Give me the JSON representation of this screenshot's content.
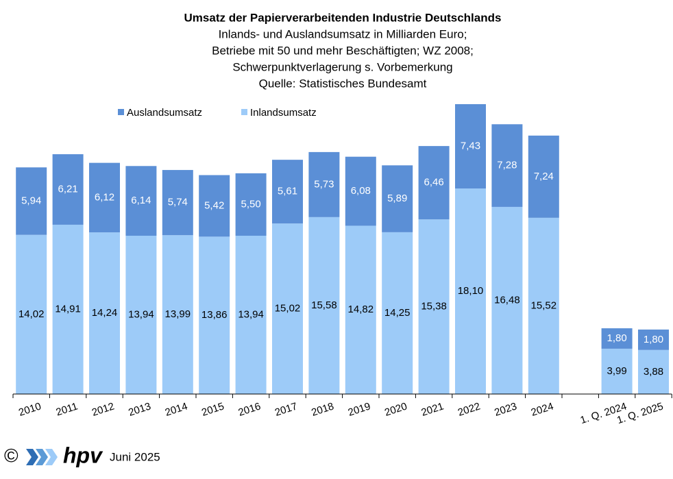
{
  "chart_data": {
    "type": "stacked_bar",
    "title": "Umsatz der Papierverarbeitenden Industrie Deutschlands",
    "subtitle": [
      "Inlands- und Auslandsumsatz  in Milliarden Euro;",
      "Betriebe mit 50 und mehr  Beschäftigten; WZ 2008;",
      "Schwerpunktverlagerung  s. Vorbemerkung",
      "Quelle:  Statistisches Bundesamt"
    ],
    "categories": [
      "2010",
      "2011",
      "2012",
      "2013",
      "2014",
      "2015",
      "2016",
      "2017",
      "2018",
      "2019",
      "2020",
      "2021",
      "2022",
      "2023",
      "2024",
      null,
      "1. Q. 2024",
      "1. Q. 2025"
    ],
    "series": [
      {
        "name": "Auslandsumsatz",
        "color": "#5b8fd6",
        "values": [
          5.94,
          6.21,
          6.12,
          6.14,
          5.74,
          5.42,
          5.5,
          5.61,
          5.73,
          6.08,
          5.89,
          6.46,
          7.43,
          7.28,
          7.24,
          null,
          1.8,
          1.8
        ],
        "value_labels": [
          "5,94",
          "6,21",
          "6,12",
          "6,14",
          "5,74",
          "5,42",
          "5,50",
          "5,61",
          "5,73",
          "6,08",
          "5,89",
          "6,46",
          "7,43",
          "7,28",
          "7,24",
          null,
          "1,80",
          "1,80"
        ]
      },
      {
        "name": "Inlandsumsatz",
        "color": "#9dcbf8",
        "values": [
          14.02,
          14.91,
          14.24,
          13.94,
          13.99,
          13.86,
          13.94,
          15.02,
          15.58,
          14.82,
          14.25,
          15.38,
          18.1,
          16.48,
          15.52,
          null,
          3.99,
          3.88
        ],
        "value_labels": [
          "14,02",
          "14,91",
          "14,24",
          "13,94",
          "13,99",
          "13,86",
          "13,94",
          "15,02",
          "15,58",
          "14,82",
          "14,25",
          "15,38",
          "18,10",
          "16,48",
          "15,52",
          null,
          "3,99",
          "3,88"
        ]
      }
    ],
    "footer": {
      "copyright": "©",
      "logo": "hpv",
      "date": "Juni 2025"
    }
  }
}
